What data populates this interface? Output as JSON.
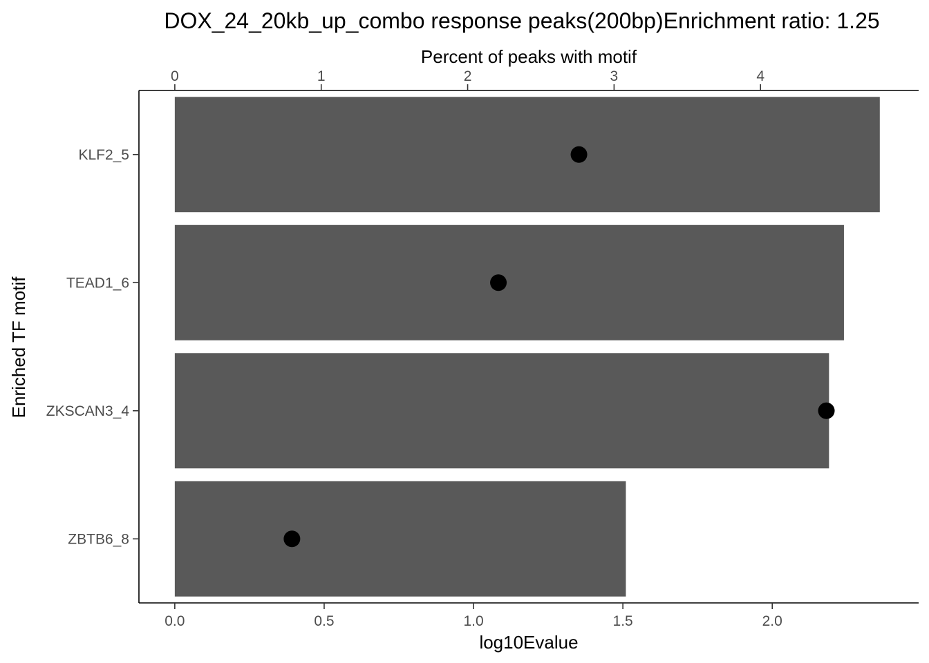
{
  "chart_data": {
    "type": "bar",
    "orientation": "horizontal",
    "title": "DOX_24_20kb_up_combo response peaks(200bp)Enrichment ratio: 1.25",
    "xlabel_bottom": "log10Evalue",
    "xlabel_top": "Percent of peaks with motif",
    "ylabel": "Enriched TF motif",
    "categories": [
      "KLF2_5",
      "TEAD1_6",
      "ZKSCAN3_4",
      "ZBTB6_8"
    ],
    "bottom_axis": {
      "ticks": [
        0,
        0.5,
        1,
        1.5,
        2
      ],
      "tick_labels": [
        "0.0",
        "0.5",
        "1.0",
        "1.5",
        "2.0"
      ],
      "range": [
        -0.12,
        2.49
      ]
    },
    "top_axis": {
      "ticks": [
        0,
        1,
        2,
        3,
        4
      ],
      "tick_labels": [
        "0",
        "1",
        "2",
        "3",
        "4"
      ],
      "range": [
        -0.245,
        5.08
      ]
    },
    "series": [
      {
        "kind": "bar",
        "axis": "bottom",
        "values": [
          2.36,
          2.24,
          2.19,
          1.51
        ],
        "color": "#595959"
      },
      {
        "kind": "point",
        "axis": "top",
        "values": [
          2.76,
          2.21,
          4.45,
          0.8
        ],
        "color": "#000000"
      }
    ],
    "grid": false,
    "legend": "none"
  }
}
